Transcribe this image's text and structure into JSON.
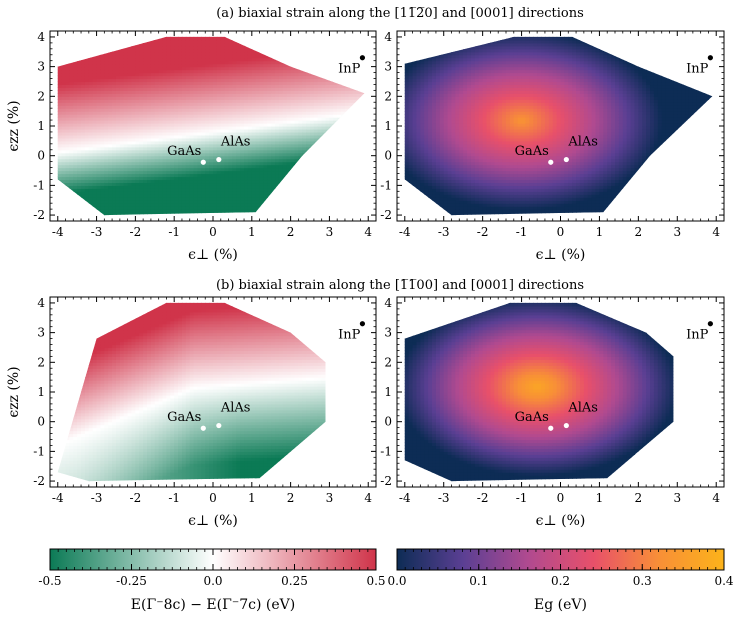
{
  "figure": {
    "rows": [
      {
        "title": "(a) biaxial strain along the [11̅2̅0] and [0001] directions"
      },
      {
        "title": "(b) biaxial strain along the [1̅1̅00] and [0001] directions"
      }
    ]
  },
  "chart_data": [
    {
      "type": "heatmap",
      "row": "a",
      "quantity": "E(Γ⁻8c) − E(Γ⁻7c)",
      "xlabel": "ϵ⊥ (%)",
      "ylabel": "ϵzz (%)",
      "xlim": [
        -4.2,
        4.2
      ],
      "ylim": [
        -2.2,
        4.2
      ],
      "xticks": [
        -4,
        -3,
        -2,
        -1,
        0,
        1,
        2,
        3,
        4
      ],
      "yticks": [
        -2,
        -1,
        0,
        1,
        2,
        3,
        4
      ],
      "colorscale": "green-white-red",
      "region": [
        [
          -4.0,
          -0.8
        ],
        [
          -4.0,
          3.0
        ],
        [
          -1.2,
          4.0
        ],
        [
          0.3,
          4.0
        ],
        [
          2.0,
          3.0
        ],
        [
          3.9,
          2.1
        ],
        [
          2.3,
          0.0
        ],
        [
          1.1,
          -1.9
        ],
        [
          -2.8,
          -2.0
        ]
      ],
      "points": [
        {
          "label": "GaAs",
          "x": -0.25,
          "y": -0.22,
          "color": "#ffffff"
        },
        {
          "label": "AlAs",
          "x": 0.15,
          "y": -0.13,
          "color": "#ffffff"
        },
        {
          "label": "InP",
          "x": 3.85,
          "y": 3.3,
          "color": "#000000"
        }
      ]
    },
    {
      "type": "heatmap",
      "row": "a",
      "quantity": "Eg",
      "xlabel": "ϵ⊥ (%)",
      "ylabel": "",
      "xlim": [
        -4.2,
        4.2
      ],
      "ylim": [
        -2.2,
        4.2
      ],
      "xticks": [
        -4,
        -3,
        -2,
        -1,
        0,
        1,
        2,
        3,
        4
      ],
      "yticks": [
        -2,
        -1,
        0,
        1,
        2,
        3,
        4
      ],
      "colorscale": "plasma",
      "region": [
        [
          -4.0,
          -0.8
        ],
        [
          -4.0,
          3.1
        ],
        [
          -1.2,
          4.0
        ],
        [
          0.3,
          4.0
        ],
        [
          2.0,
          3.0
        ],
        [
          3.9,
          2.0
        ],
        [
          2.3,
          0.0
        ],
        [
          1.1,
          -1.9
        ],
        [
          -2.8,
          -2.0
        ]
      ],
      "peak": {
        "x": -1.0,
        "y": 1.2,
        "value": 0.33
      },
      "points": [
        {
          "label": "GaAs",
          "x": -0.25,
          "y": -0.22,
          "color": "#ffffff"
        },
        {
          "label": "AlAs",
          "x": 0.15,
          "y": -0.13,
          "color": "#ffffff"
        },
        {
          "label": "InP",
          "x": 3.85,
          "y": 3.3,
          "color": "#000000"
        }
      ]
    },
    {
      "type": "heatmap",
      "row": "b",
      "quantity": "E(Γ⁻8c) − E(Γ⁻7c)",
      "xlabel": "ϵ⊥ (%)",
      "ylabel": "ϵzz (%)",
      "xlim": [
        -4.2,
        4.2
      ],
      "ylim": [
        -2.2,
        4.2
      ],
      "xticks": [
        -4,
        -3,
        -2,
        -1,
        0,
        1,
        2,
        3,
        4
      ],
      "yticks": [
        -2,
        -1,
        0,
        1,
        2,
        3,
        4
      ],
      "colorscale": "green-white-red",
      "region": [
        [
          -4.0,
          -1.7
        ],
        [
          -3.0,
          2.8
        ],
        [
          -1.2,
          4.0
        ],
        [
          0.3,
          4.0
        ],
        [
          2.0,
          3.0
        ],
        [
          2.9,
          2.0
        ],
        [
          2.9,
          0.0
        ],
        [
          1.2,
          -1.9
        ],
        [
          -3.2,
          -2.0
        ]
      ],
      "points": [
        {
          "label": "GaAs",
          "x": -0.25,
          "y": -0.22,
          "color": "#ffffff"
        },
        {
          "label": "AlAs",
          "x": 0.15,
          "y": -0.13,
          "color": "#ffffff"
        },
        {
          "label": "InP",
          "x": 3.85,
          "y": 3.3,
          "color": "#000000"
        }
      ]
    },
    {
      "type": "heatmap",
      "row": "b",
      "quantity": "Eg",
      "xlabel": "ϵ⊥ (%)",
      "ylabel": "",
      "xlim": [
        -4.2,
        4.2
      ],
      "ylim": [
        -2.2,
        4.2
      ],
      "xticks": [
        -4,
        -3,
        -2,
        -1,
        0,
        1,
        2,
        3,
        4
      ],
      "yticks": [
        -2,
        -1,
        0,
        1,
        2,
        3,
        4
      ],
      "colorscale": "plasma",
      "region": [
        [
          -4.0,
          -1.3
        ],
        [
          -4.0,
          2.8
        ],
        [
          -1.3,
          4.0
        ],
        [
          0.4,
          4.0
        ],
        [
          2.2,
          3.0
        ],
        [
          2.9,
          2.2
        ],
        [
          2.9,
          0.0
        ],
        [
          1.2,
          -1.9
        ],
        [
          -2.8,
          -2.0
        ]
      ],
      "peak": {
        "x": -0.6,
        "y": 1.2,
        "value": 0.37
      },
      "points": [
        {
          "label": "GaAs",
          "x": -0.25,
          "y": -0.22,
          "color": "#ffffff"
        },
        {
          "label": "AlAs",
          "x": 0.15,
          "y": -0.13,
          "color": "#ffffff"
        },
        {
          "label": "InP",
          "x": 3.85,
          "y": 3.3,
          "color": "#000000"
        }
      ]
    }
  ],
  "colorbars": [
    {
      "name": "diff",
      "label_main": "E(Γ⁻8c) − E(Γ⁻7c) (eV)",
      "range": [
        -0.5,
        0.5
      ],
      "ticks": [
        {
          "value": -0.5,
          "label": "-0.5"
        },
        {
          "value": -0.25,
          "label": "-0.25"
        },
        {
          "value": 0.0,
          "label": "0.0"
        },
        {
          "value": 0.25,
          "label": "0.25"
        },
        {
          "value": 0.5,
          "label": "0.5"
        }
      ],
      "colors": [
        "#0b7a55",
        "#ffffff",
        "#d0344a"
      ]
    },
    {
      "name": "gap",
      "label_main": "Eg (eV)",
      "range": [
        0.0,
        0.4
      ],
      "ticks": [
        {
          "value": 0.0,
          "label": "0.0"
        },
        {
          "value": 0.1,
          "label": "0.1"
        },
        {
          "value": 0.2,
          "label": "0.2"
        },
        {
          "value": 0.3,
          "label": "0.3"
        },
        {
          "value": 0.4,
          "label": "0.4"
        }
      ],
      "colors": [
        "#0d2c55",
        "#5a3f93",
        "#b04a90",
        "#e8506a",
        "#f88f37",
        "#fcb31a"
      ]
    }
  ]
}
